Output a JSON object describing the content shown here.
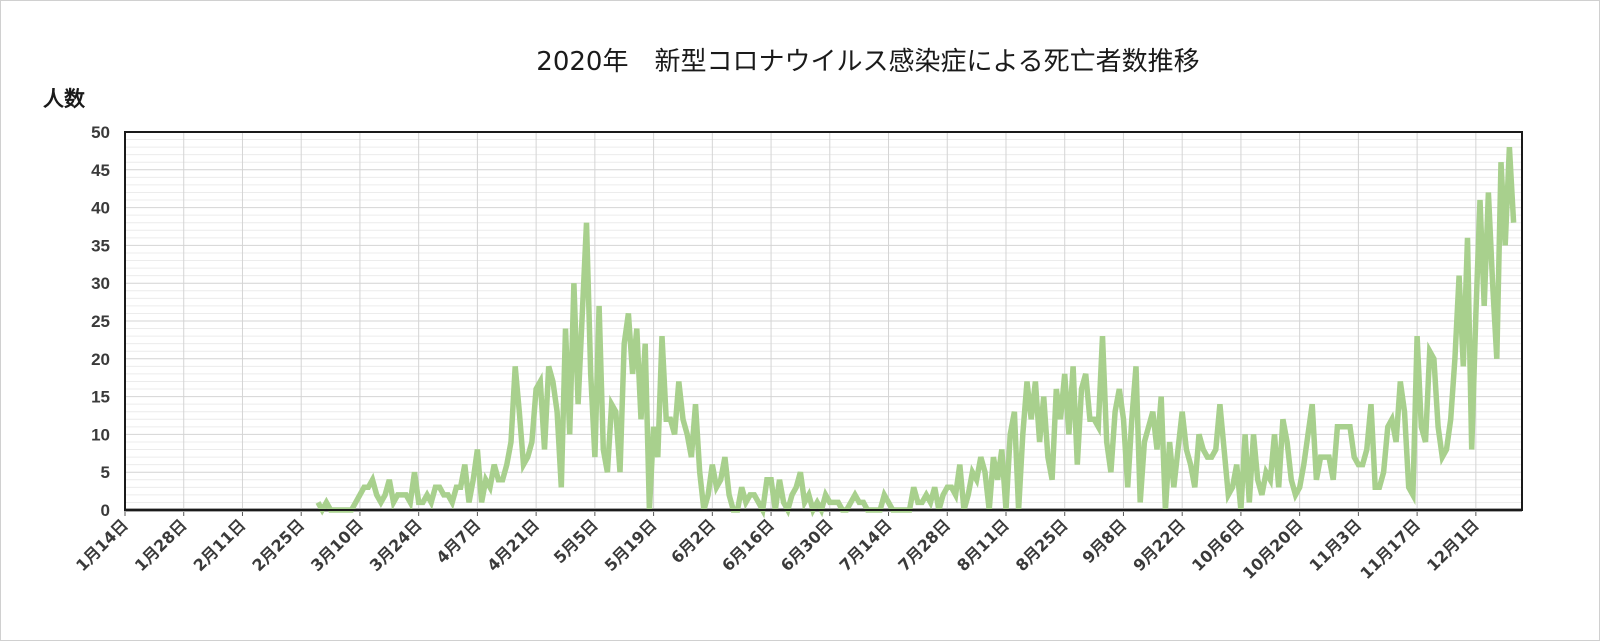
{
  "chart_data": {
    "type": "line",
    "title": "2020年　新型コロナウイルス感染症による死亡者数推移",
    "ylabel": "人数",
    "xlabel": "",
    "ylim": [
      0,
      50
    ],
    "yticks": [
      0,
      5,
      10,
      15,
      20,
      25,
      30,
      35,
      40,
      45,
      50
    ],
    "x_range": [
      "1月14日",
      "12月12日"
    ],
    "x_tick_labels": [
      "1月14日",
      "1月28日",
      "2月11日",
      "2月25日",
      "3月10日",
      "3月24日",
      "4月7日",
      "4月21日",
      "5月5日",
      "5月19日",
      "6月2日",
      "6月16日",
      "6月30日",
      "7月14日",
      "7月28日",
      "8月11日",
      "8月25日",
      "9月8日",
      "9月22日",
      "10月6日",
      "10月20日",
      "11月3日",
      "11月17日",
      "12月1日"
    ],
    "grid": true,
    "line_color": "#a8d08d",
    "series": [
      {
        "start_date": "2月29日",
        "values": [
          1,
          0,
          1,
          0,
          0,
          0,
          0,
          0,
          0,
          1,
          2,
          3,
          3,
          4,
          2,
          1,
          2,
          4,
          1,
          2,
          2,
          2,
          1,
          5,
          1,
          1,
          2,
          1,
          3,
          3,
          2,
          2,
          1,
          3,
          3,
          6,
          1,
          4,
          8,
          1,
          4,
          3,
          6,
          4,
          4,
          6,
          9,
          19,
          13,
          6,
          7,
          9,
          16,
          17,
          8,
          19,
          17,
          13,
          3,
          24,
          10,
          30,
          14,
          26,
          38,
          18,
          7,
          27,
          8,
          5,
          14,
          13,
          5,
          22,
          26,
          18,
          24,
          12,
          22,
          0,
          11,
          7,
          23,
          12,
          12,
          10,
          17,
          12,
          10,
          7,
          14,
          5,
          0,
          2,
          6,
          3,
          4,
          7,
          2,
          0,
          0,
          3,
          1,
          2,
          2,
          1,
          0,
          4,
          4,
          0,
          4,
          1,
          0,
          2,
          3,
          5,
          1,
          2,
          0,
          1,
          0,
          2,
          1,
          1,
          1,
          0,
          0,
          1,
          2,
          1,
          1,
          0,
          0,
          0,
          0,
          2,
          1,
          0,
          0,
          0,
          0,
          0,
          3,
          1,
          1,
          2,
          1,
          3,
          0,
          2,
          3,
          3,
          2,
          6,
          0,
          2,
          5,
          4,
          7,
          5,
          0,
          7,
          4,
          8,
          0,
          10,
          13,
          0,
          10,
          17,
          12,
          17,
          9,
          15,
          7,
          4,
          16,
          12,
          18,
          10,
          19,
          6,
          16,
          18,
          12,
          12,
          11,
          23,
          9,
          5,
          13,
          16,
          12,
          3,
          12,
          19,
          1,
          9,
          11,
          13,
          8,
          15,
          0,
          9,
          3,
          8,
          13,
          8,
          6,
          3,
          10,
          8,
          7,
          7,
          8,
          14,
          8,
          2,
          3,
          6,
          0,
          10,
          1,
          10,
          4,
          2,
          5,
          4,
          10,
          3,
          12,
          9,
          4,
          2,
          3,
          6,
          10,
          14,
          4,
          7,
          7,
          7,
          4,
          11,
          11,
          11,
          11,
          7,
          6,
          6,
          8,
          14,
          3,
          3,
          5,
          11,
          12,
          9,
          17,
          13,
          3,
          2,
          23,
          11,
          9,
          21,
          20,
          11,
          7,
          8,
          12,
          20,
          31,
          19,
          36,
          8,
          26,
          41,
          27,
          42,
          30,
          20,
          46,
          35,
          48,
          38
        ]
      }
    ]
  }
}
